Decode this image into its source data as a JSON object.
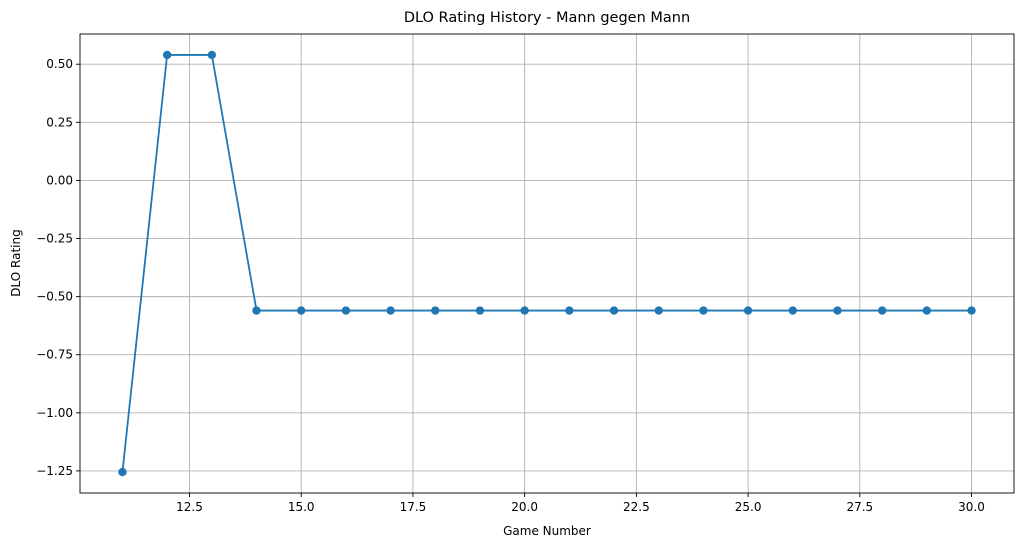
{
  "chart_data": {
    "type": "line",
    "title": "DLO Rating History - Mann gegen Mann",
    "xlabel": "Game Number",
    "ylabel": "DLO Rating",
    "xlim": [
      10.05,
      30.95
    ],
    "ylim": [
      -1.345,
      0.63
    ],
    "xticks": [
      12.5,
      15.0,
      17.5,
      20.0,
      22.5,
      25.0,
      27.5,
      30.0
    ],
    "xtick_labels": [
      "12.5",
      "15.0",
      "17.5",
      "20.0",
      "22.5",
      "25.0",
      "27.5",
      "30.0"
    ],
    "yticks": [
      -1.25,
      -1.0,
      -0.75,
      -0.5,
      -0.25,
      0.0,
      0.25,
      0.5
    ],
    "ytick_labels": [
      "−1.25",
      "−1.00",
      "−0.75",
      "−0.50",
      "−0.25",
      "0.00",
      "0.25",
      "0.50"
    ],
    "grid": true,
    "marker": "circle",
    "color": "#1f77b4",
    "series": [
      {
        "x": [
          11,
          12,
          13,
          14,
          15,
          16,
          17,
          18,
          19,
          20,
          21,
          22,
          23,
          24,
          25,
          26,
          27,
          28,
          29,
          30
        ],
        "values": [
          -1.255,
          0.54,
          0.54,
          -0.56,
          -0.56,
          -0.56,
          -0.56,
          -0.56,
          -0.56,
          -0.56,
          -0.56,
          -0.56,
          -0.56,
          -0.56,
          -0.56,
          -0.56,
          -0.56,
          -0.56,
          -0.56,
          -0.56
        ]
      }
    ]
  }
}
